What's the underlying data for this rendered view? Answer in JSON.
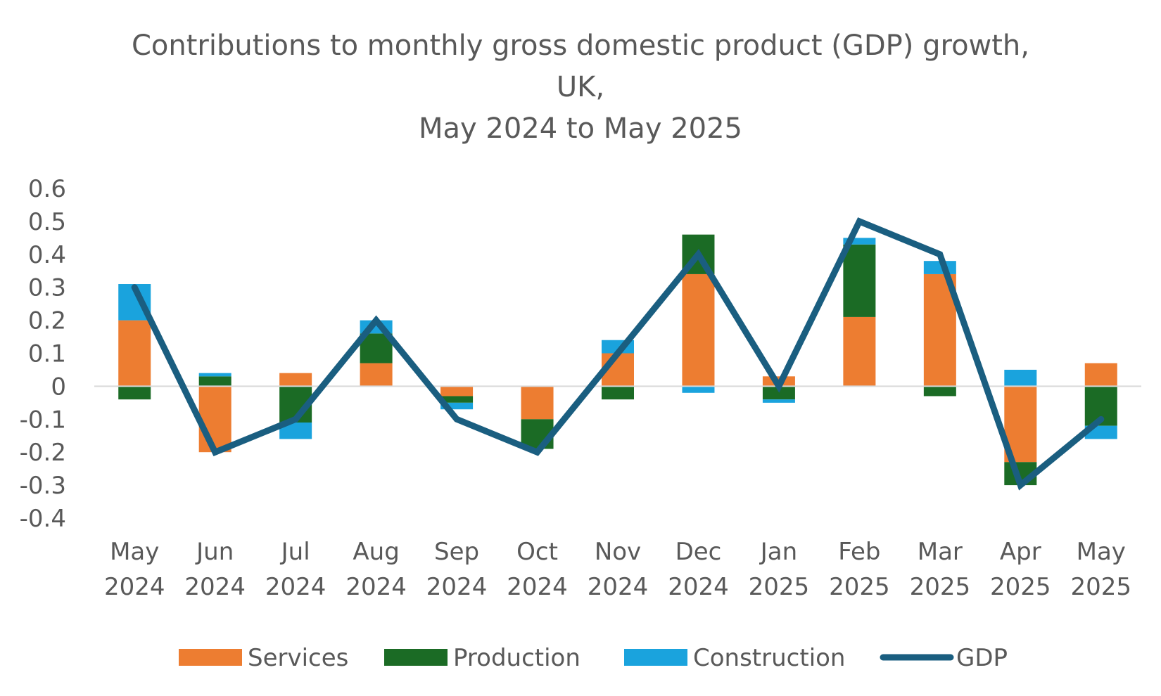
{
  "chart_data": {
    "type": "bar",
    "stacked": true,
    "title_lines": [
      "Contributions to monthly gross domestic product (GDP) growth,",
      "UK,",
      "May 2024 to May 2025"
    ],
    "categories": [
      [
        "May",
        "2024"
      ],
      [
        "Jun",
        "2024"
      ],
      [
        "Jul",
        "2024"
      ],
      [
        "Aug",
        "2024"
      ],
      [
        "Sep",
        "2024"
      ],
      [
        "Oct",
        "2024"
      ],
      [
        "Nov",
        "2024"
      ],
      [
        "Dec",
        "2024"
      ],
      [
        "Jan",
        "2025"
      ],
      [
        "Feb",
        "2025"
      ],
      [
        "Mar",
        "2025"
      ],
      [
        "Apr",
        "2025"
      ],
      [
        "May",
        "2025"
      ]
    ],
    "ylim": [
      -0.4,
      0.6
    ],
    "yticks": [
      "0.6",
      "0.5",
      "0.4",
      "0.3",
      "0.2",
      "0.1",
      "0",
      "-0.1",
      "-0.2",
      "-0.3",
      "-0.4"
    ],
    "grid": false,
    "legend_position": "bottom",
    "series": [
      {
        "name": "Services",
        "kind": "bar",
        "color": "#ED7D31",
        "values": [
          0.2,
          -0.2,
          0.04,
          0.07,
          -0.03,
          -0.1,
          0.1,
          0.34,
          0.03,
          0.21,
          0.34,
          -0.23,
          0.07
        ]
      },
      {
        "name": "Production",
        "kind": "bar",
        "color": "#1B6B25",
        "values": [
          -0.04,
          0.03,
          -0.11,
          0.09,
          -0.02,
          -0.09,
          -0.04,
          0.12,
          -0.04,
          0.22,
          -0.03,
          -0.07,
          -0.12
        ]
      },
      {
        "name": "Construction",
        "kind": "bar",
        "color": "#1AA3DD",
        "values": [
          0.11,
          0.01,
          -0.05,
          0.04,
          -0.02,
          0.0,
          0.04,
          -0.02,
          -0.01,
          0.02,
          0.04,
          0.05,
          -0.04
        ]
      },
      {
        "name": "GDP",
        "kind": "line",
        "color": "#1A5E80",
        "values": [
          0.3,
          -0.2,
          -0.1,
          0.2,
          -0.1,
          -0.2,
          0.1,
          0.4,
          0.0,
          0.5,
          0.4,
          -0.3,
          -0.1
        ]
      }
    ]
  }
}
